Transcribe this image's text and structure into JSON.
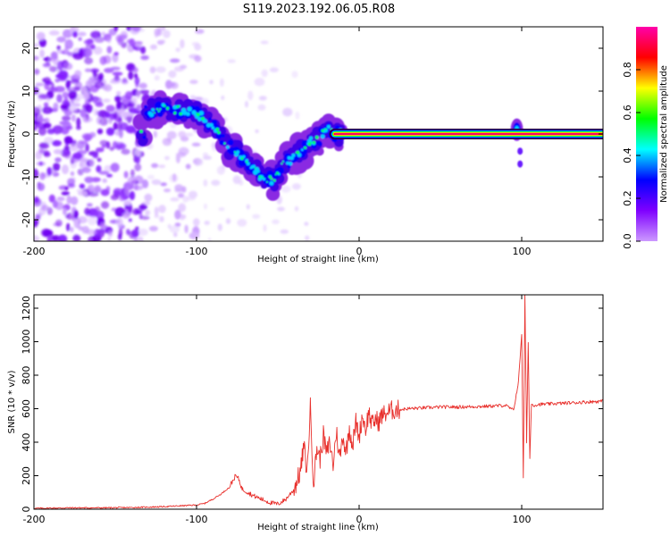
{
  "title": "S119.2023.192.06.05.R08",
  "chart_data": [
    {
      "type": "heatmap",
      "xlabel": "Height of straight line (km)",
      "ylabel": "Frequency (Hz)",
      "xlim": [
        -200,
        150
      ],
      "ylim": [
        -25,
        25
      ],
      "xticks": [
        -200,
        -100,
        0,
        100
      ],
      "yticks": [
        -20,
        -10,
        0,
        10,
        20
      ],
      "colorbar": {
        "label": "Normalized spectral amplitude",
        "range": [
          0,
          1
        ],
        "ticks": [
          "0.0",
          "0.2",
          "0.4",
          "0.6",
          "0.8"
        ],
        "colormap": [
          "#cc99ff",
          "#7f00ff",
          "#0000ff",
          "#00ffff",
          "#00ff00",
          "#ffff00",
          "#ff0000",
          "#ff00aa"
        ]
      },
      "ridge": {
        "x": [
          -132,
          -120,
          -110,
          -100,
          -90,
          -80,
          -70,
          -60,
          -52,
          -48,
          -42,
          -36,
          -30,
          -24,
          -20,
          -16,
          -10,
          -5,
          0,
          5,
          10,
          50,
          90,
          100,
          150
        ],
        "y": [
          5,
          6,
          5.5,
          5,
          2,
          -3,
          -6,
          -10,
          -11,
          -7,
          -6,
          -4,
          -2,
          -1,
          2,
          0,
          0,
          0.5,
          0.5,
          0.3,
          0,
          0,
          0,
          0,
          0
        ]
      },
      "carrier": {
        "x_start": -15,
        "x_end": 150,
        "frequency": 0
      }
    },
    {
      "type": "line",
      "xlabel": "Height of straight line (km)",
      "ylabel": "SNR (10 * v/v)",
      "xlim": [
        -200,
        150
      ],
      "ylim": [
        0,
        1280
      ],
      "xticks": [
        -200,
        -100,
        0,
        100
      ],
      "yticks": [
        0,
        200,
        400,
        600,
        800,
        1000,
        1200
      ],
      "color": "#e8302c",
      "series": [
        {
          "x": [
            -200,
            -180,
            -160,
            -140,
            -120,
            -110,
            -100,
            -95,
            -90,
            -85,
            -80,
            -76,
            -74,
            -72,
            -70,
            -65,
            -60,
            -55,
            -50,
            -45,
            -40,
            -36,
            -34,
            -32,
            -30,
            -28,
            -26,
            -24,
            -22,
            -20,
            -18,
            -16,
            -14,
            -12,
            -10,
            -8,
            -6,
            -4,
            -2,
            0,
            2,
            4,
            6,
            8,
            10,
            12,
            14,
            16,
            18,
            20,
            25,
            30,
            40,
            50,
            60,
            70,
            80,
            90,
            95,
            98,
            100,
            101,
            102,
            103,
            104,
            105,
            106,
            107,
            110,
            120,
            130,
            140,
            150
          ],
          "y": [
            5,
            8,
            8,
            10,
            15,
            20,
            25,
            35,
            60,
            90,
            130,
            200,
            180,
            120,
            110,
            80,
            60,
            40,
            30,
            60,
            120,
            230,
            380,
            220,
            610,
            150,
            370,
            300,
            440,
            330,
            400,
            260,
            470,
            300,
            440,
            340,
            490,
            380,
            520,
            430,
            560,
            480,
            580,
            500,
            540,
            520,
            560,
            570,
            580,
            590,
            595,
            600,
            605,
            610,
            610,
            612,
            615,
            620,
            590,
            760,
            1050,
            180,
            1280,
            400,
            1000,
            300,
            630,
            620,
            625,
            630,
            635,
            640,
            645
          ]
        }
      ]
    }
  ]
}
